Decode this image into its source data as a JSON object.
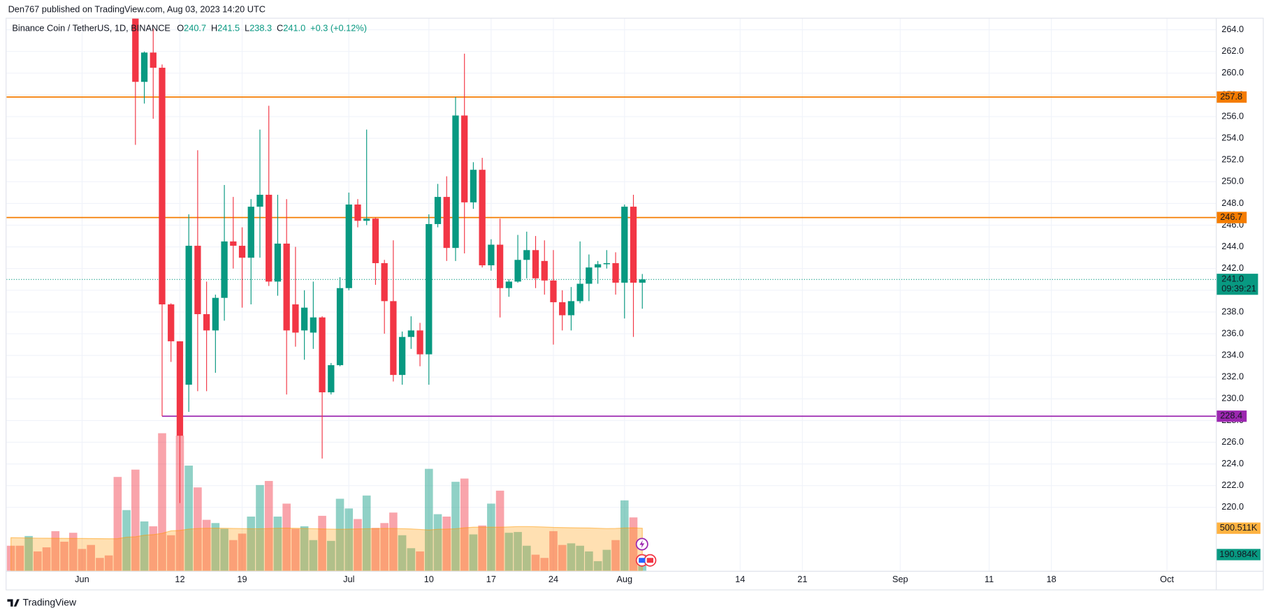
{
  "chart_data": {
    "type": "candlestick",
    "publisher": "Den767 published on TradingView.com, Aug 03, 2023 14:20 UTC",
    "brand": "TradingView",
    "legend": {
      "symbol": "Binance Coin / TetherUS, 1D, BINANCE",
      "items": [
        {
          "key": "O",
          "value": 240.7
        },
        {
          "key": "H",
          "value": 241.5
        },
        {
          "key": "L",
          "value": 238.3
        },
        {
          "key": "C",
          "value": 241,
          "label": "241.0"
        }
      ],
      "change": "+0.3 (+0.12%)"
    },
    "up_color": "#089981",
    "down_color": "#f23645",
    "grid": true,
    "x": [
      "2023-05-24",
      "2023-05-25",
      "2023-05-26",
      "2023-05-27",
      "2023-05-28",
      "2023-05-29",
      "2023-05-30",
      "2023-05-31",
      "2023-06-01",
      "2023-06-02",
      "2023-06-03",
      "2023-06-04",
      "2023-06-05",
      "2023-06-06",
      "2023-06-07",
      "2023-06-08",
      "2023-06-09",
      "2023-06-10",
      "2023-06-11",
      "2023-06-12",
      "2023-06-13",
      "2023-06-14",
      "2023-06-15",
      "2023-06-16",
      "2023-06-17",
      "2023-06-18",
      "2023-06-19",
      "2023-06-20",
      "2023-06-21",
      "2023-06-22",
      "2023-06-23",
      "2023-06-24",
      "2023-06-25",
      "2023-06-26",
      "2023-06-27",
      "2023-06-28",
      "2023-06-29",
      "2023-06-30",
      "2023-07-01",
      "2023-07-02",
      "2023-07-03",
      "2023-07-04",
      "2023-07-05",
      "2023-07-06",
      "2023-07-07",
      "2023-07-08",
      "2023-07-09",
      "2023-07-10",
      "2023-07-11",
      "2023-07-12",
      "2023-07-13",
      "2023-07-14",
      "2023-07-15",
      "2023-07-16",
      "2023-07-17",
      "2023-07-18",
      "2023-07-19",
      "2023-07-20",
      "2023-07-21",
      "2023-07-22",
      "2023-07-23",
      "2023-07-24",
      "2023-07-25",
      "2023-07-26",
      "2023-07-27",
      "2023-07-28",
      "2023-07-29",
      "2023-07-30",
      "2023-07-31",
      "2023-08-01",
      "2023-08-02",
      "2023-08-03"
    ],
    "open": [
      null,
      null,
      null,
      null,
      null,
      null,
      null,
      null,
      null,
      null,
      null,
      null,
      null,
      null,
      270,
      259.2,
      261.9,
      260.5,
      238.7,
      235.3,
      231.3,
      244.1,
      237.8,
      236.3,
      239.3,
      244.5,
      244.1,
      243.0,
      247.7,
      248.8,
      240.8,
      244.3,
      238.7,
      236.3,
      236.1,
      237.5,
      230.6,
      233.1,
      240.2,
      247.9,
      246.4,
      246.6,
      242.5,
      239.0,
      232.2,
      235.7,
      236.3,
      234.1,
      246.1,
      248.6,
      243.9,
      256.1,
      248.1,
      251.1,
      242.3,
      244.2,
      240.2,
      240.8,
      242.8,
      243.7,
      242.7,
      240.9,
      238.9,
      237.7,
      239.0,
      240.6,
      242.1,
      242.4,
      242.5,
      240.7,
      247.7,
      240.7
    ],
    "high": [
      null,
      null,
      null,
      null,
      null,
      null,
      null,
      null,
      null,
      null,
      null,
      null,
      null,
      null,
      272,
      262.0,
      264.1,
      260.8,
      238.8,
      235.3,
      247.0,
      252.9,
      240.8,
      239.6,
      249.7,
      248.6,
      245.8,
      248.4,
      254.8,
      257.0,
      248.8,
      248.4,
      244.0,
      240.0,
      240.8,
      237.6,
      233.3,
      241.2,
      249.0,
      248.4,
      254.8,
      246.7,
      242.8,
      244.6,
      236.2,
      237.6,
      237.0,
      247.0,
      249.8,
      250.5,
      257.8,
      261.8,
      251.8,
      252.2,
      244.7,
      246.6,
      241.0,
      245.1,
      245.4,
      245.0,
      244.6,
      243.7,
      240.0,
      240.3,
      244.5,
      243.3,
      242.7,
      243.7,
      243.5,
      247.9,
      248.8,
      241.5
    ],
    "low": [
      null,
      null,
      null,
      null,
      null,
      null,
      null,
      null,
      null,
      null,
      null,
      null,
      null,
      null,
      253.4,
      257.2,
      255.8,
      228.4,
      233.4,
      220.4,
      228.8,
      230.7,
      230.7,
      232.4,
      237.2,
      242.0,
      238.4,
      238.7,
      243.0,
      240.4,
      239.5,
      230.4,
      234.8,
      233.6,
      234.6,
      224.5,
      230.4,
      233.0,
      240.0,
      245.8,
      246.0,
      240.5,
      236.0,
      231.6,
      231.3,
      234.6,
      233.0,
      231.3,
      245.8,
      242.7,
      242.7,
      243.4,
      247.5,
      242.1,
      241.8,
      237.5,
      239.4,
      240.7,
      241.1,
      240.2,
      239.6,
      235.0,
      236.3,
      236.3,
      238.8,
      239.0,
      240.6,
      242.0,
      239.6,
      237.4,
      235.7,
      238.3
    ],
    "close": [
      null,
      null,
      null,
      null,
      null,
      null,
      null,
      null,
      null,
      null,
      null,
      null,
      null,
      null,
      259.2,
      261.9,
      260.5,
      238.7,
      235.3,
      226.6,
      244.1,
      237.8,
      236.3,
      239.3,
      244.5,
      244.1,
      243.0,
      247.7,
      248.8,
      240.8,
      244.3,
      236.3,
      236.1,
      238.4,
      237.5,
      230.6,
      233.1,
      240.2,
      247.9,
      246.4,
      246.6,
      242.5,
      239.0,
      232.2,
      235.7,
      236.3,
      234.1,
      246.1,
      248.6,
      243.9,
      256.1,
      248.1,
      251.1,
      242.3,
      244.2,
      240.2,
      240.8,
      242.8,
      243.7,
      241.1,
      240.9,
      238.9,
      237.7,
      239.0,
      240.6,
      242.1,
      242.4,
      242.5,
      240.7,
      247.7,
      240.7,
      241.0
    ],
    "volume": {
      "values": [
        295,
        295,
        409,
        228,
        276,
        466,
        342,
        447,
        257,
        304,
        152,
        181,
        1102,
        713,
        1188,
        580,
        523,
        1615,
        418,
        1587,
        1235,
        979,
        599,
        561,
        494,
        361,
        437,
        637,
        1007,
        1055,
        637,
        789,
        494,
        523,
        361,
        646,
        352,
        846,
        732,
        608,
        884,
        504,
        561,
        684,
        418,
        266,
        228,
        1197,
        665,
        637,
        1045,
        1083,
        428,
        532,
        789,
        941,
        447,
        456,
        295,
        190,
        152,
        466,
        304,
        323,
        295,
        228,
        114,
        247,
        361,
        827,
        627,
        190.984
      ],
      "up": [
        0,
        0,
        1,
        0,
        0,
        0,
        0,
        0,
        0,
        0,
        0,
        0,
        0,
        1,
        0,
        1,
        0,
        0,
        0,
        0,
        1,
        0,
        0,
        1,
        1,
        0,
        0,
        1,
        1,
        0,
        1,
        0,
        0,
        1,
        1,
        0,
        1,
        1,
        1,
        0,
        1,
        0,
        0,
        0,
        1,
        1,
        0,
        1,
        1,
        0,
        1,
        0,
        1,
        0,
        1,
        0,
        1,
        1,
        1,
        0,
        0,
        0,
        0,
        1,
        1,
        1,
        1,
        1,
        0,
        1,
        0,
        1
      ],
      "ma": [
        390,
        388,
        386,
        384,
        383,
        382,
        381,
        380,
        380,
        379,
        378,
        377,
        378,
        395,
        400,
        418,
        425,
        440,
        470,
        475,
        490,
        497,
        500,
        501,
        500,
        498,
        496,
        494,
        494,
        497,
        500,
        502,
        500,
        498,
        495,
        492,
        490,
        488,
        490,
        492,
        494,
        496,
        498,
        497,
        495,
        492,
        486,
        480,
        488,
        490,
        494,
        505,
        512,
        514,
        512,
        512,
        516,
        520,
        520,
        518,
        515,
        510,
        508,
        506,
        504,
        503,
        500,
        496,
        498,
        503,
        504,
        500.511
      ],
      "ma_color": "#ff9800",
      "ylim": [
        0,
        1900
      ],
      "ma_last_label": "500.511K",
      "last_label": "190.984K"
    },
    "xlim": [
      "2023-05-23T12:00",
      "2023-10-06T12:00"
    ],
    "xticks": [
      {
        "value": "2023-06-01",
        "label": "Jun"
      },
      {
        "value": "2023-06-12",
        "label": "12"
      },
      {
        "value": "2023-06-19",
        "label": "19"
      },
      {
        "value": "2023-07-01",
        "label": "Jul"
      },
      {
        "value": "2023-07-10",
        "label": "10"
      },
      {
        "value": "2023-07-17",
        "label": "17"
      },
      {
        "value": "2023-07-24",
        "label": "24"
      },
      {
        "value": "2023-08-01",
        "label": "Aug"
      },
      {
        "value": "2023-08-14",
        "label": "14"
      },
      {
        "value": "2023-08-21",
        "label": "21"
      },
      {
        "value": "2023-09-01",
        "label": "Sep"
      },
      {
        "value": "2023-09-11",
        "label": "11"
      },
      {
        "value": "2023-09-18",
        "label": "18"
      },
      {
        "value": "2023-10-01",
        "label": "Oct"
      }
    ],
    "ylim": [
      214.15,
      265.1
    ],
    "yticks": [
      {
        "value": 264,
        "label": "264.0"
      },
      {
        "value": 262,
        "label": "262.0"
      },
      {
        "value": 260,
        "label": "260.0"
      },
      {
        "value": 258,
        "label": "258.0"
      },
      {
        "value": 256,
        "label": "256.0"
      },
      {
        "value": 254,
        "label": "254.0"
      },
      {
        "value": 252,
        "label": "252.0"
      },
      {
        "value": 250,
        "label": "250.0"
      },
      {
        "value": 248,
        "label": "248.0"
      },
      {
        "value": 246,
        "label": "246.0"
      },
      {
        "value": 244,
        "label": "244.0"
      },
      {
        "value": 242,
        "label": "242.0"
      },
      {
        "value": 240,
        "label": "240.0"
      },
      {
        "value": 238,
        "label": "238.0"
      },
      {
        "value": 236,
        "label": "236.0"
      },
      {
        "value": 234,
        "label": "234.0"
      },
      {
        "value": 232,
        "label": "232.0"
      },
      {
        "value": 230,
        "label": "230.0"
      },
      {
        "value": 228,
        "label": "228.0"
      },
      {
        "value": 226,
        "label": "226.0"
      },
      {
        "value": 224,
        "label": "224.0"
      },
      {
        "value": 222,
        "label": "222.0"
      },
      {
        "value": 220,
        "label": "220.0"
      }
    ],
    "hlines": [
      {
        "value": 257.8,
        "color": "#f57c00"
      },
      {
        "value": 246.7,
        "color": "#f57c00"
      },
      {
        "value": 228.4,
        "color": "#9c27b0",
        "start": "2023-06-10"
      }
    ],
    "last_price": {
      "value": 241,
      "label": "241.0",
      "countdown": "09:39:21"
    }
  }
}
